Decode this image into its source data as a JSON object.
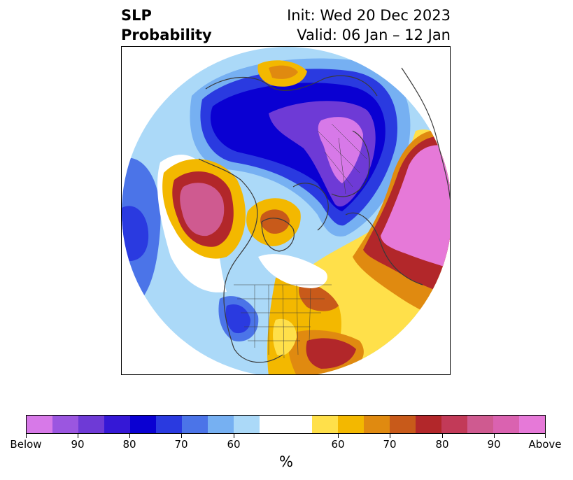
{
  "header": {
    "left_title": "SLP\nProbability",
    "right_title": "Init: Wed 20 Dec 2023\nValid: 06 Jan – 12 Jan"
  },
  "map": {
    "projection": "north-polar-stereographic",
    "features": [
      "coastlines",
      "country-borders",
      "state-borders"
    ],
    "colors": {
      "below_90": "#6a3fd8",
      "below_80": "#0a00d6",
      "below_70": "#2a3fe0",
      "below_60": "#77b0f2",
      "near_normal": "#ffffff",
      "above_60": "#f3b800",
      "above_70": "#e08a10",
      "above_80": "#b8282a",
      "above_90": "#d85aa8"
    }
  },
  "colorbar": {
    "colors": [
      "#d779e8",
      "#9b56e0",
      "#6e3ad6",
      "#3518d6",
      "#0a00d2",
      "#2a3ae0",
      "#4b74e8",
      "#76b0f2",
      "#abd9f8",
      "#ffffff",
      "#ffe04a",
      "#f3b800",
      "#e08a10",
      "#c85a1a",
      "#b2272a",
      "#c23a58",
      "#cf5a90",
      "#da62b0",
      "#e679d8"
    ],
    "labels": [
      "Below",
      "90",
      "80",
      "70",
      "60",
      "60",
      "70",
      "80",
      "90",
      "Above"
    ],
    "unit": "%"
  }
}
